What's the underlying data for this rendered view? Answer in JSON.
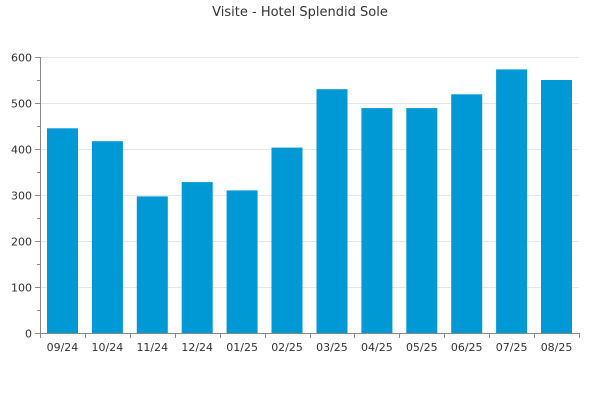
{
  "chart_data": {
    "type": "bar",
    "title": "Visite - Hotel Splendid Sole",
    "xlabel": "",
    "ylabel": "",
    "categories": [
      "09/24",
      "10/24",
      "11/24",
      "12/24",
      "01/25",
      "02/25",
      "03/25",
      "04/25",
      "05/25",
      "06/25",
      "07/25",
      "08/25"
    ],
    "values": [
      445,
      417,
      297,
      328,
      310,
      403,
      530,
      489,
      489,
      519,
      573,
      550
    ],
    "ylim": [
      0,
      600
    ],
    "yticks": [
      0,
      100,
      200,
      300,
      400,
      500,
      600
    ],
    "grid": true,
    "legend": "none",
    "bar_color": "#0099d5"
  }
}
